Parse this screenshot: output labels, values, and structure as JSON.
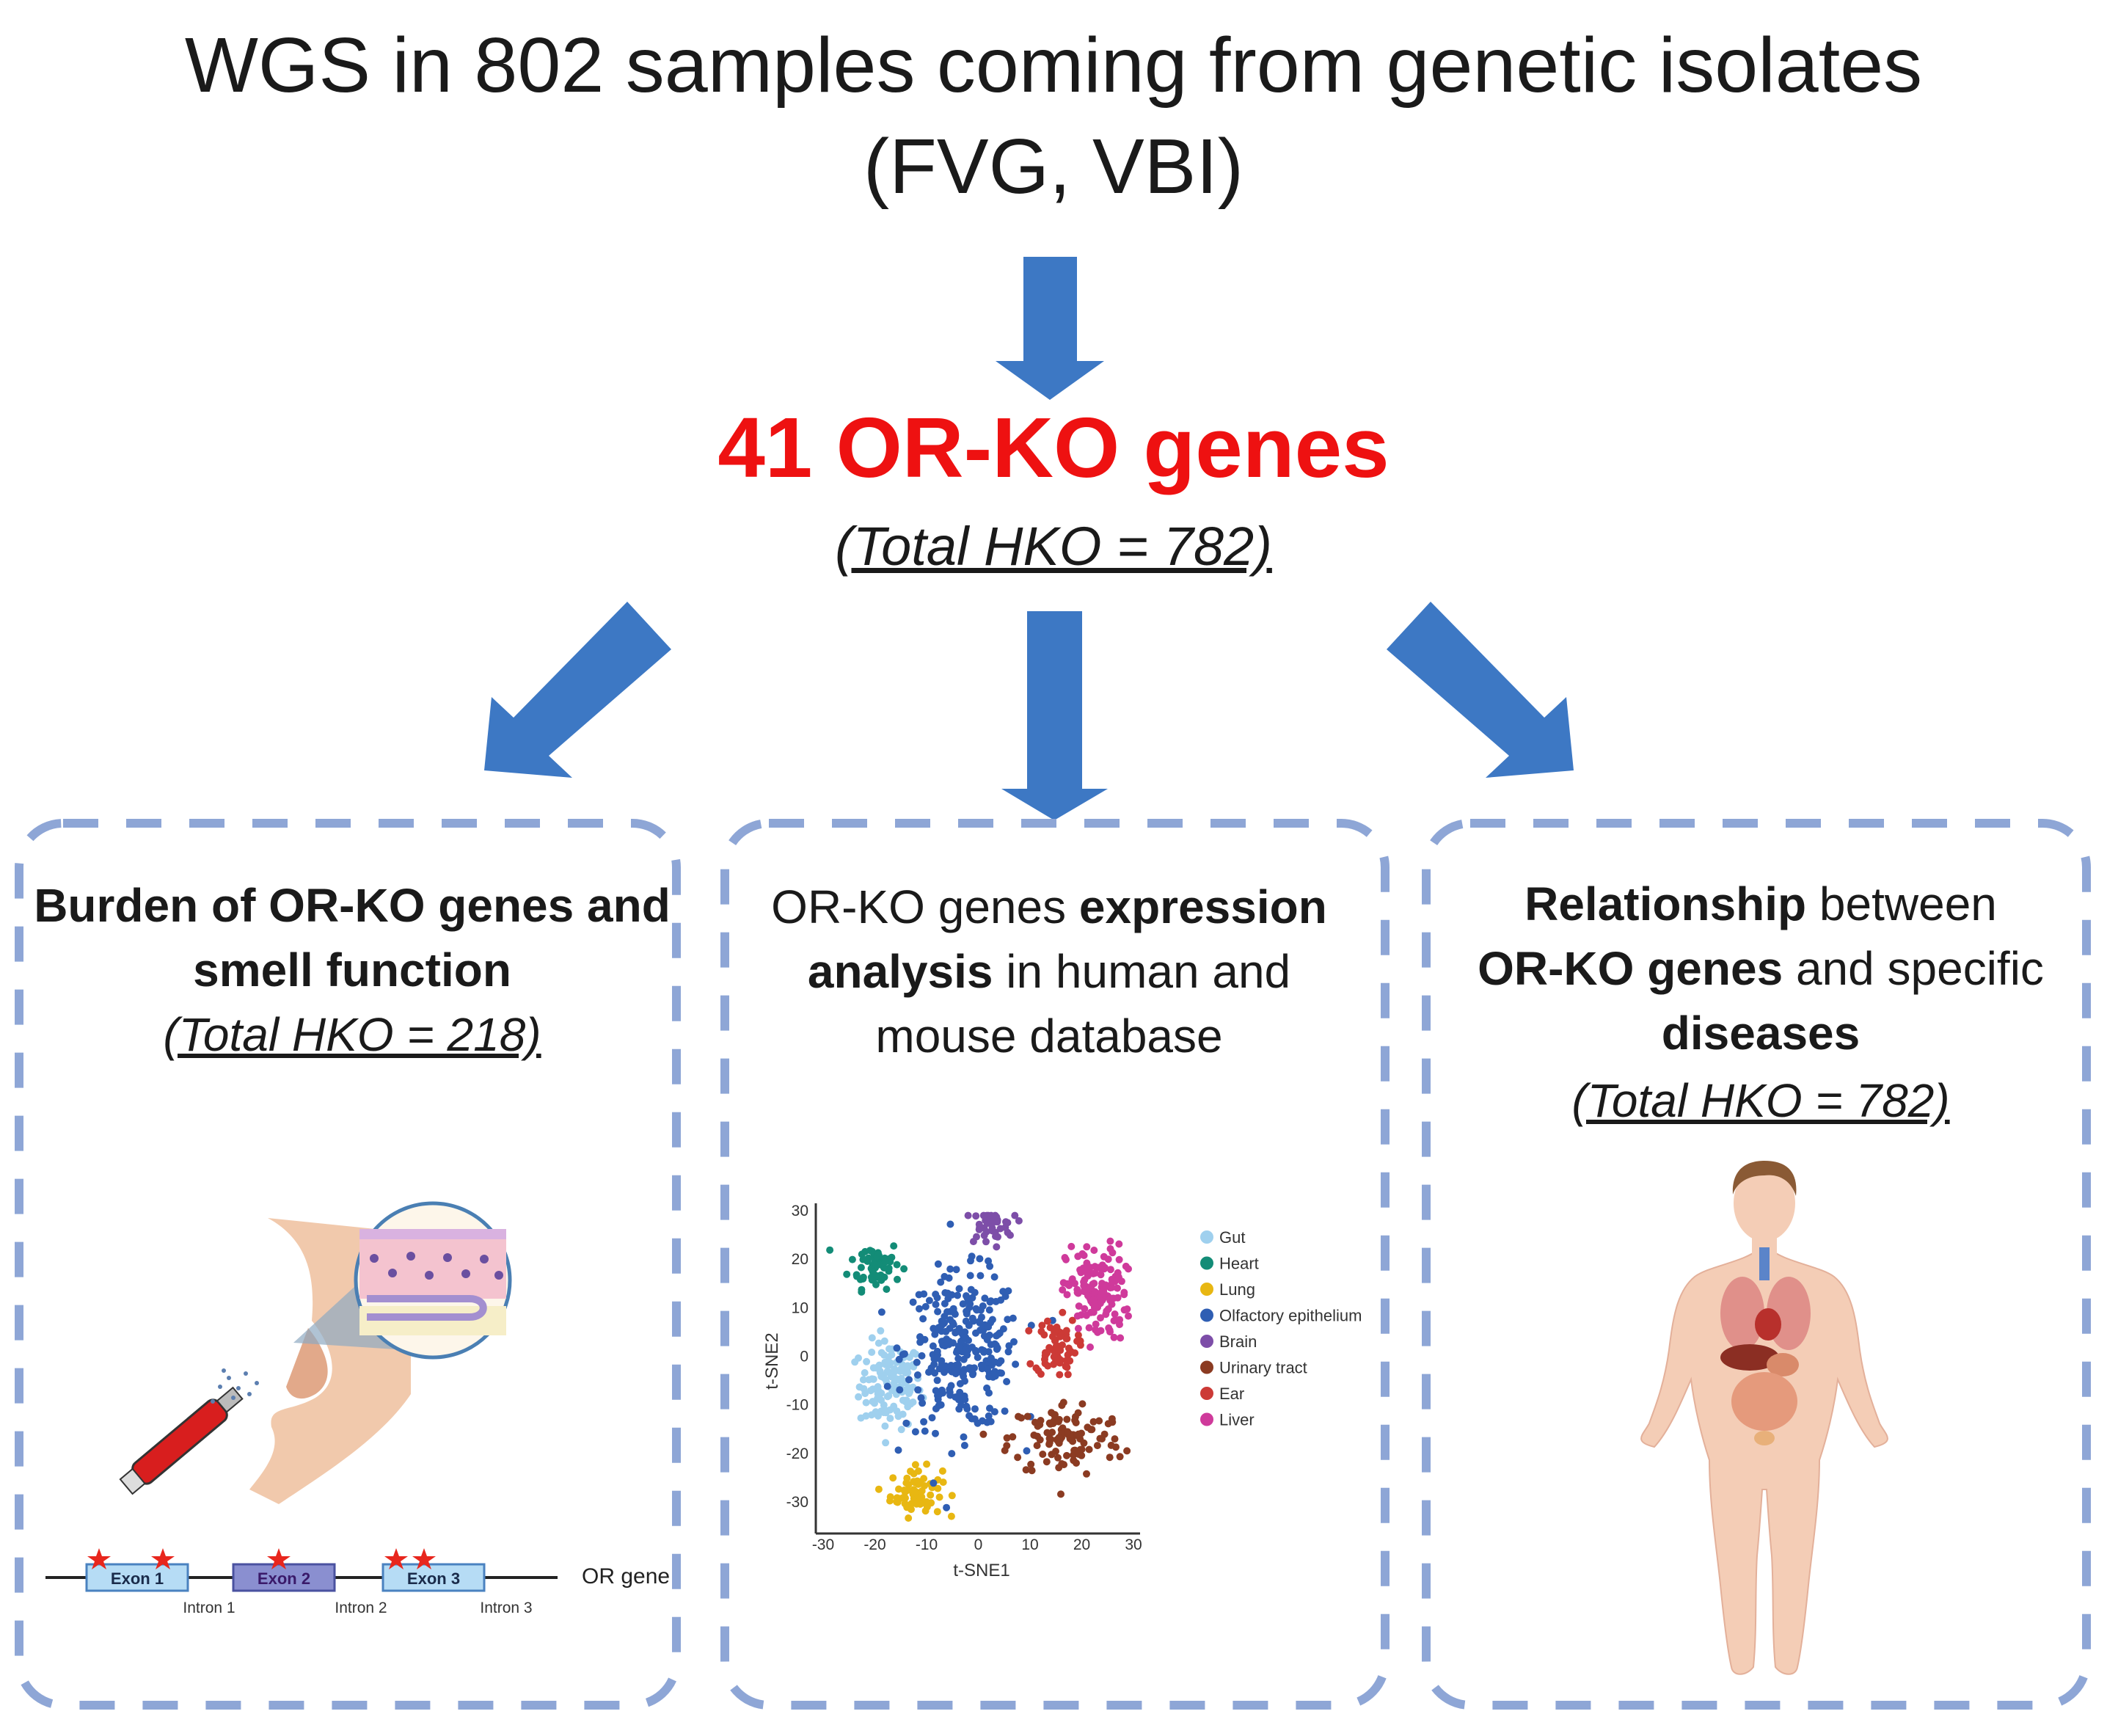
{
  "title": {
    "line1": "WGS in 802 samples coming from genetic isolates",
    "line2": "(FVG, VBI)"
  },
  "headline": {
    "main": "41 OR-KO genes",
    "sub": "(Total HKO = 782)"
  },
  "colors": {
    "arrow": "#3d78c4",
    "headline": "#ee1111",
    "box_border": "#8ea6d6"
  },
  "boxes": [
    {
      "id": "smell",
      "title_line1": "Burden of OR-KO genes and",
      "title_line2": "smell function",
      "sub": "(Total HKO = 218)",
      "gene": {
        "exons": [
          "Exon 1",
          "Exon 2",
          "Exon 3"
        ],
        "introns": [
          "Intron 1",
          "Intron 2",
          "Intron 3"
        ],
        "label": "OR gene"
      }
    },
    {
      "id": "expression",
      "pre_text": "OR-KO genes ",
      "bold1": "expression",
      "bold2": "analysis",
      "mid_text": " in human and",
      "line3": "mouse database"
    },
    {
      "id": "disease",
      "bold1": "Relationship",
      "text1": " between",
      "bold2": "OR-KO genes",
      "text2": " and specific",
      "bold3": "diseases",
      "sub": "(Total HKO = 782)"
    }
  ],
  "chart_data": {
    "type": "scatter",
    "title": "",
    "xlabel": "t-SNE1",
    "ylabel": "t-SNE2",
    "xlim": [
      -30,
      30
    ],
    "ylim": [
      -35,
      30
    ],
    "xticks": [
      "-30",
      "-20",
      "-10",
      "0",
      "10",
      "20",
      "30"
    ],
    "yticks": [
      "30",
      "20",
      "10",
      "0",
      "-10",
      "-20",
      "-30"
    ],
    "legend_position": "right",
    "series": [
      {
        "name": "Gut",
        "color": "#9fd0ee",
        "center": [
          -17,
          -6
        ],
        "spread": [
          6,
          9
        ],
        "n": 130
      },
      {
        "name": "Heart",
        "color": "#138c77",
        "center": [
          -20,
          19
        ],
        "spread": [
          5,
          5
        ],
        "n": 60
      },
      {
        "name": "Lung",
        "color": "#e8b712",
        "center": [
          -12,
          -28
        ],
        "spread": [
          5,
          5
        ],
        "n": 70
      },
      {
        "name": "Olfactory epithelium",
        "color": "#2f5eb3",
        "center": [
          -3,
          1
        ],
        "spread": [
          11,
          16
        ],
        "n": 290
      },
      {
        "name": "Brain",
        "color": "#7d4ea8",
        "center": [
          2,
          27
        ],
        "spread": [
          5,
          4
        ],
        "n": 40
      },
      {
        "name": "Urinary tract",
        "color": "#8b3b22",
        "center": [
          17,
          -17
        ],
        "spread": [
          11,
          8
        ],
        "n": 110
      },
      {
        "name": "Ear",
        "color": "#cc3a36",
        "center": [
          15,
          2
        ],
        "spread": [
          4,
          6
        ],
        "n": 70
      },
      {
        "name": "Liver",
        "color": "#cf3a9b",
        "center": [
          23,
          13
        ],
        "spread": [
          6,
          10
        ],
        "n": 140
      }
    ]
  }
}
